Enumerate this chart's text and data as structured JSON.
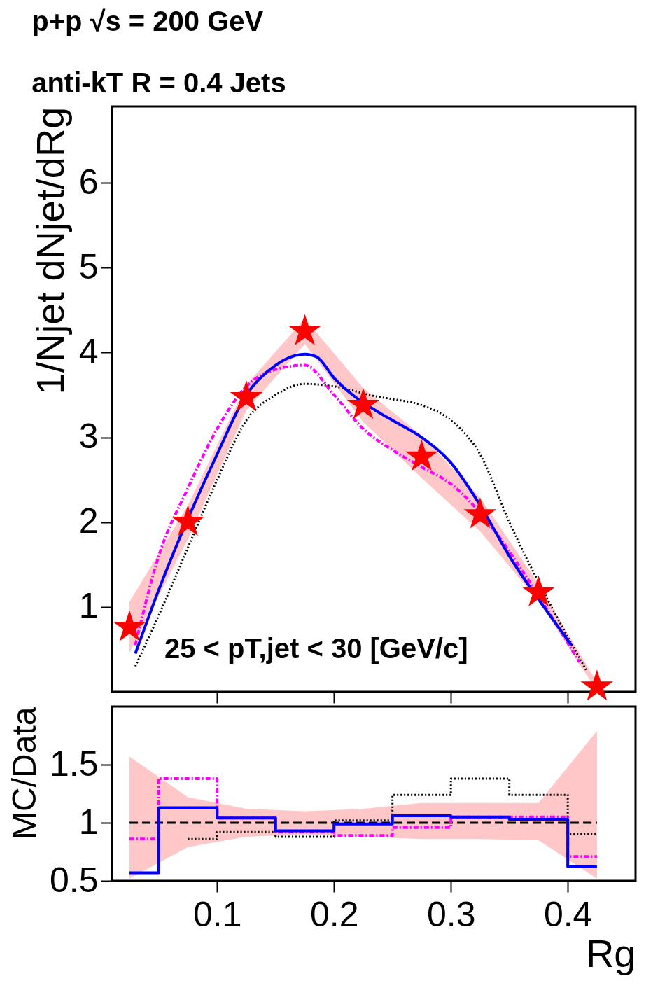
{
  "chart_data": [
    {
      "type": "line",
      "title": "p+p √s = 200 GeV",
      "subtitle": "anti-kT R = 0.4 Jets",
      "ylabel": "1/Njet dNjet/dRg",
      "annotations": [
        "25 < pT,jet < 30 [GeV/c]"
      ],
      "xlim": [
        0.01,
        0.458
      ],
      "xticks": [
        0.1,
        0.2,
        0.3,
        0.4
      ],
      "ylim": [
        0,
        6.9
      ],
      "yticks": [
        1,
        2,
        3,
        4,
        5,
        6
      ],
      "tick_labels": "y",
      "grid": false,
      "series": [
        {
          "type": "scatter",
          "marker": "star",
          "color": "#ff0000",
          "x": [
            0.025,
            0.075,
            0.125,
            0.175,
            0.225,
            0.275,
            0.325,
            0.375,
            0.425
          ],
          "values": [
            0.76,
            2.0,
            3.47,
            4.25,
            3.38,
            2.77,
            2.09,
            1.17,
            0.06
          ],
          "lower": [
            0.46,
            1.8,
            3.32,
            4.1,
            3.18,
            2.52,
            1.89,
            1.07,
            0.01
          ],
          "upper": [
            1.06,
            2.2,
            3.62,
            4.4,
            3.58,
            3.02,
            2.29,
            1.27,
            0.11
          ]
        },
        {
          "line_style": "dotted",
          "color": "#000000",
          "x": [
            0.03,
            0.05,
            0.075,
            0.1,
            0.125,
            0.15,
            0.175,
            0.2,
            0.237,
            0.25,
            0.275,
            0.3,
            0.325,
            0.35,
            0.39,
            0.416
          ],
          "values": [
            0.3,
            0.9,
            1.7,
            2.5,
            3.2,
            3.5,
            3.63,
            3.6,
            3.48,
            3.45,
            3.38,
            3.2,
            2.8,
            2.0,
            0.9,
            0.25
          ]
        },
        {
          "line_style": "dashed",
          "color": "#ff00ff",
          "x": [
            0.03,
            0.05,
            0.075,
            0.1,
            0.125,
            0.15,
            0.175,
            0.2,
            0.225,
            0.25,
            0.275,
            0.3,
            0.34,
            0.36,
            0.39,
            0.41
          ],
          "values": [
            0.55,
            1.6,
            2.4,
            3.1,
            3.6,
            3.8,
            3.85,
            3.5,
            3.1,
            2.85,
            2.65,
            2.45,
            1.85,
            1.45,
            0.8,
            0.35
          ]
        },
        {
          "line_style": "solid",
          "color": "#0000ff",
          "x": [
            0.03,
            0.05,
            0.1,
            0.125,
            0.15,
            0.175,
            0.185,
            0.2,
            0.24,
            0.25,
            0.275,
            0.3,
            0.325,
            0.35,
            0.39,
            0.403
          ],
          "values": [
            0.45,
            1.2,
            2.8,
            3.5,
            3.85,
            3.98,
            3.95,
            3.7,
            3.28,
            3.2,
            3.0,
            2.7,
            2.2,
            1.6,
            0.8,
            0.55
          ]
        }
      ]
    },
    {
      "type": "step",
      "xlabel": "Rg",
      "ylabel": "MC/Data",
      "xlim": [
        0.01,
        0.458
      ],
      "xticks": [
        0.1,
        0.2,
        0.3,
        0.4
      ],
      "ylim": [
        0.5,
        2.0
      ],
      "yticks": [
        0.5,
        1,
        1.5
      ],
      "grid": false,
      "series": [
        {
          "type": "line",
          "line_style": "dashed",
          "color": "#000000",
          "x": [
            0.025,
            0.075,
            0.125,
            0.175,
            0.225,
            0.275,
            0.325,
            0.375,
            0.425
          ],
          "values": [
            1,
            1,
            1,
            1,
            1,
            1,
            1,
            1,
            1
          ],
          "lower": [
            0.52,
            0.79,
            0.88,
            0.9,
            0.88,
            0.86,
            0.86,
            0.85,
            0.52
          ],
          "upper": [
            1.57,
            1.22,
            1.12,
            1.1,
            1.12,
            1.17,
            1.17,
            1.17,
            1.79
          ]
        },
        {
          "line_style": "dotted",
          "color": "#000000",
          "x": [
            0.075,
            0.125,
            0.175,
            0.225,
            0.275,
            0.325,
            0.375,
            0.425
          ],
          "values": [
            0.86,
            0.92,
            0.88,
            1.02,
            1.24,
            1.38,
            1.24,
            0.9
          ]
        },
        {
          "line_style": "dashed",
          "color": "#ff00ff",
          "x": [
            0.025,
            0.075,
            0.125,
            0.175,
            0.225,
            0.275,
            0.325,
            0.375,
            0.425
          ],
          "values": [
            0.86,
            1.38,
            1.04,
            0.92,
            0.89,
            0.96,
            1.05,
            1.05,
            0.71
          ]
        },
        {
          "line_style": "solid",
          "color": "#0000ff",
          "x": [
            0.025,
            0.075,
            0.125,
            0.175,
            0.225,
            0.275,
            0.325,
            0.375,
            0.425
          ],
          "values": [
            0.57,
            1.13,
            1.04,
            0.93,
            0.99,
            1.06,
            1.05,
            1.03,
            0.62
          ]
        }
      ]
    }
  ]
}
